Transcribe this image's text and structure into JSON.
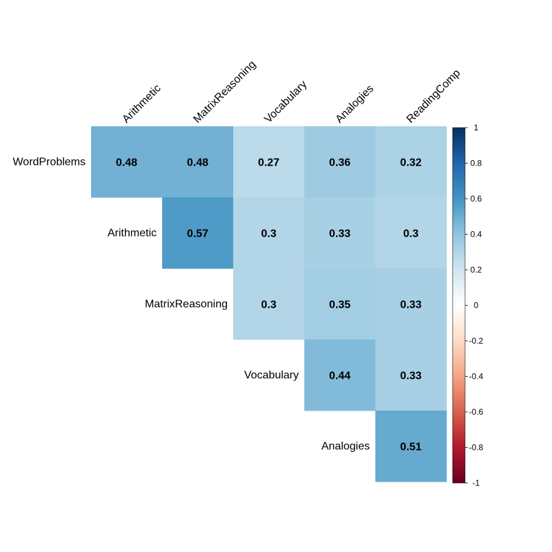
{
  "chart_data": {
    "type": "heatmap",
    "layout": "upper-triangle correlation matrix",
    "row_labels": [
      "WordProblems",
      "Arithmetic",
      "MatrixReasoning",
      "Vocabulary",
      "Analogies"
    ],
    "column_labels": [
      "Arithmetic",
      "MatrixReasoning",
      "Vocabulary",
      "Analogies",
      "ReadingComp"
    ],
    "cells": [
      {
        "row": 0,
        "col": 0,
        "value": 0.48,
        "label": "0.48"
      },
      {
        "row": 0,
        "col": 1,
        "value": 0.48,
        "label": "0.48"
      },
      {
        "row": 0,
        "col": 2,
        "value": 0.27,
        "label": "0.27"
      },
      {
        "row": 0,
        "col": 3,
        "value": 0.36,
        "label": "0.36"
      },
      {
        "row": 0,
        "col": 4,
        "value": 0.32,
        "label": "0.32"
      },
      {
        "row": 1,
        "col": 1,
        "value": 0.57,
        "label": "0.57"
      },
      {
        "row": 1,
        "col": 2,
        "value": 0.3,
        "label": "0.3"
      },
      {
        "row": 1,
        "col": 3,
        "value": 0.33,
        "label": "0.33"
      },
      {
        "row": 1,
        "col": 4,
        "value": 0.3,
        "label": "0.3"
      },
      {
        "row": 2,
        "col": 2,
        "value": 0.3,
        "label": "0.3"
      },
      {
        "row": 2,
        "col": 3,
        "value": 0.35,
        "label": "0.35"
      },
      {
        "row": 2,
        "col": 4,
        "value": 0.33,
        "label": "0.33"
      },
      {
        "row": 3,
        "col": 3,
        "value": 0.44,
        "label": "0.44"
      },
      {
        "row": 3,
        "col": 4,
        "value": 0.33,
        "label": "0.33"
      },
      {
        "row": 4,
        "col": 4,
        "value": 0.51,
        "label": "0.51"
      }
    ],
    "colorbar": {
      "range": [
        -1,
        1
      ],
      "ticks": [
        "1",
        "0.8",
        "0.6",
        "0.4",
        "0.2",
        "0",
        "-0.2",
        "-0.4",
        "-0.6",
        "-0.8",
        "-1"
      ],
      "colors": [
        "#67001F",
        "#B2182B",
        "#D6604D",
        "#F4A582",
        "#FDDBC7",
        "#FFFFFF",
        "#D1E5F0",
        "#92C5DE",
        "#4393C3",
        "#2166AC",
        "#053061"
      ]
    }
  }
}
